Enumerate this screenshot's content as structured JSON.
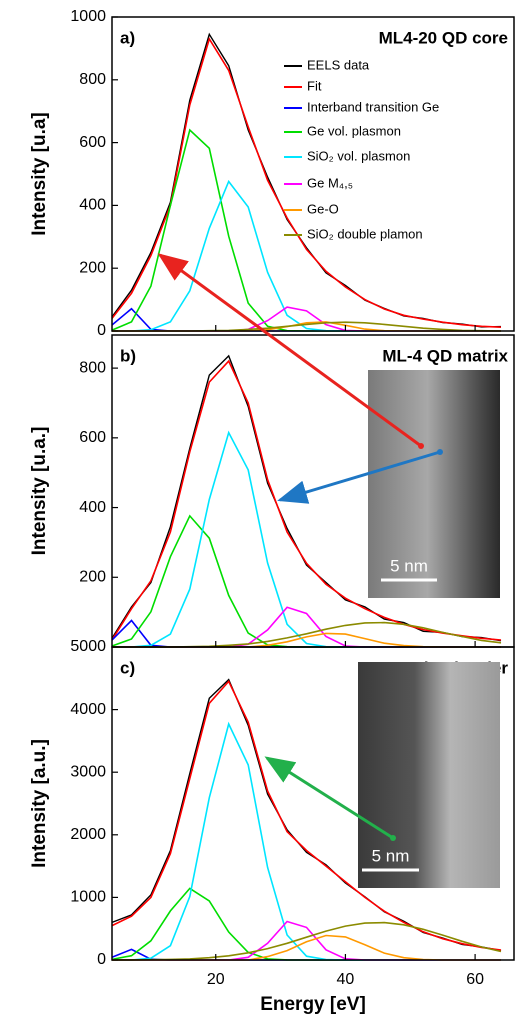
{
  "chart_data": [
    {
      "type": "line",
      "panel": "a)",
      "title": "ML4-20 QD core",
      "ylabel": "Intensity [u.a]",
      "legend": "upper right",
      "xlim": [
        4,
        66
      ],
      "xticks": [
        20,
        40,
        60
      ],
      "ylim": [
        0,
        1000
      ],
      "yticks": [
        0,
        200,
        400,
        600,
        800,
        1000
      ],
      "x": [
        4,
        7,
        10,
        13,
        16,
        19,
        22,
        25,
        28,
        31,
        34,
        37,
        40,
        43,
        46,
        49,
        52,
        55,
        58,
        61,
        64
      ],
      "series": [
        {
          "name": "EELS data",
          "color": "#000000",
          "values": [
            45,
            130,
            250,
            410,
            735,
            945,
            845,
            640,
            490,
            355,
            265,
            185,
            145,
            98,
            72,
            48,
            40,
            27,
            22,
            13,
            14
          ]
        },
        {
          "name": "Fit",
          "color": "#ff0000",
          "values": [
            40,
            120,
            240,
            400,
            720,
            930,
            830,
            650,
            480,
            360,
            260,
            190,
            140,
            100,
            70,
            50,
            38,
            28,
            20,
            15,
            12
          ]
        },
        {
          "name": "Interband transition Ge",
          "color": "#0000ff",
          "values": [
            19,
            71,
            5,
            0,
            0,
            0,
            0,
            0,
            0,
            0,
            0,
            0,
            0,
            0,
            0,
            0,
            0,
            0,
            0,
            0,
            0
          ]
        },
        {
          "name": "Ge vol. plasmon",
          "color": "#00dd00",
          "values": [
            3,
            29,
            143,
            400,
            640,
            582,
            302,
            89,
            15,
            1,
            0,
            0,
            0,
            0,
            0,
            0,
            0,
            0,
            0,
            0,
            0
          ]
        },
        {
          "name": "SiO₂ vol. plasmon",
          "color": "#00e5ff",
          "values": [
            0,
            0,
            4,
            29,
            128,
            327,
            476,
            395,
            187,
            50,
            8,
            1,
            0,
            0,
            0,
            0,
            0,
            0,
            0,
            0,
            0
          ]
        },
        {
          "name": "Ge M₄,₅",
          "color": "#ff00ff",
          "values": [
            0,
            0,
            0,
            0,
            0,
            0,
            0,
            5,
            33,
            76,
            64,
            20,
            2,
            0,
            0,
            0,
            0,
            0,
            0,
            0,
            0
          ]
        },
        {
          "name": "Ge-O",
          "color": "#ff9900",
          "values": [
            0,
            0,
            0,
            0,
            0,
            0,
            0,
            0,
            4,
            14,
            26,
            29,
            18,
            6,
            1,
            0,
            0,
            0,
            0,
            0,
            0
          ]
        },
        {
          "name": "SiO₂ double plamon",
          "color": "#8b8b00",
          "values": [
            0,
            0,
            0,
            0,
            0,
            1,
            2,
            5,
            9,
            15,
            21,
            26,
            28,
            26,
            21,
            15,
            9,
            5,
            2,
            1,
            0
          ]
        }
      ]
    },
    {
      "type": "line",
      "panel": "b)",
      "title": "ML-4 QD matrix",
      "ylabel": "Intensity [u.a.]",
      "inset": "5 nm",
      "xlim": [
        4,
        66
      ],
      "xticks": [
        20,
        40,
        60
      ],
      "ylim": [
        0,
        895
      ],
      "yticks": [
        200,
        400,
        600,
        800
      ],
      "x": [
        4,
        7,
        10,
        13,
        16,
        19,
        22,
        25,
        28,
        31,
        34,
        37,
        40,
        43,
        46,
        49,
        52,
        55,
        58,
        61,
        64
      ],
      "series": [
        {
          "color": "#000000",
          "values": [
            25,
            115,
            185,
            345,
            570,
            780,
            835,
            690,
            470,
            340,
            235,
            185,
            135,
            115,
            80,
            70,
            45,
            42,
            30,
            27,
            18
          ]
        },
        {
          "color": "#ff0000",
          "values": [
            20,
            110,
            190,
            330,
            560,
            760,
            820,
            700,
            480,
            330,
            240,
            180,
            140,
            110,
            85,
            65,
            50,
            40,
            32,
            25,
            20
          ]
        },
        {
          "color": "#0000ff",
          "values": [
            20,
            76,
            5,
            0,
            0,
            0,
            0,
            0,
            0,
            0,
            0,
            0,
            0,
            0,
            0,
            0,
            0,
            0,
            0,
            0,
            0
          ]
        },
        {
          "color": "#00dd00",
          "values": [
            3,
            23,
            101,
            259,
            376,
            312,
            148,
            40,
            6,
            1,
            0,
            0,
            0,
            0,
            0,
            0,
            0,
            0,
            0,
            0,
            0
          ]
        },
        {
          "color": "#00e5ff",
          "values": [
            0,
            0,
            5,
            37,
            166,
            423,
            615,
            508,
            241,
            65,
            10,
            1,
            0,
            0,
            0,
            0,
            0,
            0,
            0,
            0,
            0
          ]
        },
        {
          "color": "#ff00ff",
          "values": [
            0,
            0,
            0,
            0,
            0,
            0,
            0,
            8,
            49,
            114,
            96,
            30,
            3,
            0,
            0,
            0,
            0,
            0,
            0,
            0,
            0
          ]
        },
        {
          "color": "#ff9900",
          "values": [
            0,
            0,
            0,
            0,
            0,
            0,
            0,
            0,
            5,
            15,
            29,
            39,
            37,
            24,
            11,
            4,
            1,
            0,
            0,
            0,
            0
          ]
        },
        {
          "color": "#8b8b00",
          "values": [
            0,
            0,
            0,
            0,
            1,
            2,
            5,
            9,
            16,
            26,
            38,
            51,
            62,
            69,
            70,
            65,
            55,
            42,
            30,
            19,
            12
          ]
        }
      ]
    },
    {
      "type": "line",
      "panel": "c)",
      "title": "ML-4 SiO₂ barrier",
      "ylabel": "Intensity [a.u.]",
      "xlabel": "Energy [eV]",
      "inset": "5 nm",
      "xlim": [
        4,
        66
      ],
      "xticks": [
        20,
        40,
        60
      ],
      "ylim": [
        0,
        5000
      ],
      "yticks": [
        0,
        1000,
        2000,
        3000,
        4000,
        5000
      ],
      "x": [
        4,
        7,
        10,
        13,
        16,
        19,
        22,
        25,
        28,
        31,
        34,
        37,
        40,
        43,
        46,
        49,
        52,
        55,
        58,
        61,
        64
      ],
      "series": [
        {
          "color": "#000000",
          "values": [
            600,
            720,
            1040,
            1750,
            2980,
            4180,
            4480,
            3750,
            2650,
            2080,
            1720,
            1520,
            1230,
            1010,
            770,
            620,
            440,
            350,
            250,
            210,
            150
          ]
        },
        {
          "color": "#ff0000",
          "values": [
            550,
            700,
            1000,
            1700,
            2900,
            4100,
            4450,
            3800,
            2700,
            2050,
            1750,
            1500,
            1250,
            1000,
            780,
            600,
            450,
            340,
            260,
            200,
            160
          ]
        },
        {
          "color": "#0000ff",
          "values": [
            45,
            170,
            12,
            0,
            0,
            0,
            0,
            0,
            0,
            0,
            0,
            0,
            0,
            0,
            0,
            0,
            0,
            0,
            0,
            0,
            0
          ]
        },
        {
          "color": "#00dd00",
          "values": [
            9,
            69,
            307,
            784,
            1144,
            943,
            447,
            121,
            18,
            2,
            0,
            0,
            0,
            0,
            0,
            0,
            0,
            0,
            0,
            0,
            0
          ]
        },
        {
          "color": "#00e5ff",
          "values": [
            0,
            0,
            29,
            228,
            1015,
            2592,
            3770,
            3116,
            1478,
            399,
            61,
            8,
            0,
            0,
            0,
            0,
            0,
            0,
            0,
            0,
            0
          ]
        },
        {
          "color": "#ff00ff",
          "values": [
            0,
            0,
            0,
            0,
            0,
            0,
            0,
            43,
            267,
            615,
            520,
            163,
            19,
            0,
            0,
            0,
            0,
            0,
            0,
            0,
            0
          ]
        },
        {
          "color": "#ff9900",
          "values": [
            0,
            0,
            0,
            0,
            0,
            0,
            0,
            0,
            54,
            150,
            290,
            392,
            369,
            243,
            111,
            36,
            8,
            0,
            0,
            0,
            0
          ]
        },
        {
          "color": "#8b8b00",
          "values": [
            1,
            2,
            4,
            9,
            18,
            37,
            67,
            115,
            182,
            267,
            364,
            461,
            541,
            590,
            598,
            562,
            490,
            397,
            299,
            208,
            135
          ]
        }
      ]
    }
  ]
}
